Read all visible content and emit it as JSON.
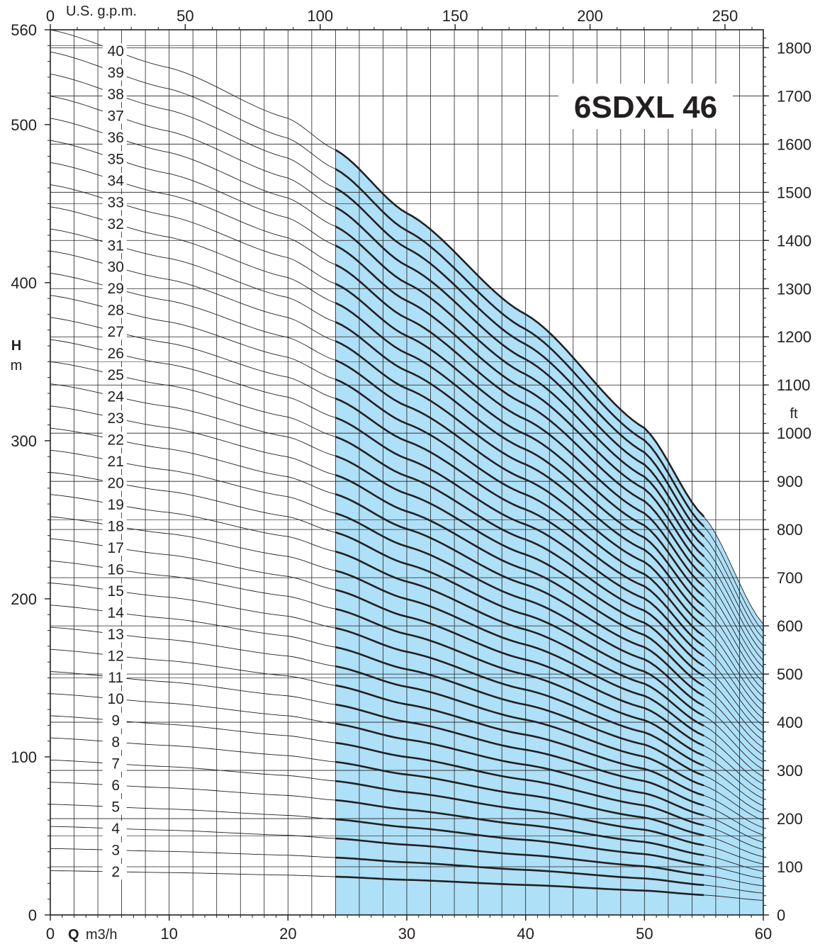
{
  "chart_data": {
    "type": "line",
    "title": "6SDXL 46",
    "x_axis": {
      "label_bold": "Q",
      "label_unit": "m3/h",
      "lim": [
        0,
        60
      ],
      "ticks": [
        0,
        10,
        20,
        30,
        40,
        50,
        60
      ]
    },
    "top_axis": {
      "label": "U.S. g.p.m.",
      "lim": [
        0,
        264.2
      ],
      "ticks": [
        0,
        50,
        100,
        150,
        200,
        250
      ]
    },
    "y_axis": {
      "label_bold": "H",
      "label_unit": "m",
      "lim": [
        0,
        560
      ],
      "ticks": [
        0,
        100,
        200,
        300,
        400,
        500,
        560
      ]
    },
    "right_axis": {
      "label": "ft",
      "lim": [
        0,
        1837.3
      ],
      "ticks": [
        0,
        100,
        200,
        300,
        400,
        500,
        600,
        700,
        800,
        900,
        1000,
        1100,
        1200,
        1300,
        1400,
        1500,
        1600,
        1700,
        1800
      ]
    },
    "grid": true,
    "operating_range_q": [
      24,
      55
    ],
    "operating_range_color": "#aee0f7",
    "line_color": "#231f20",
    "stages": [
      2,
      3,
      4,
      5,
      6,
      7,
      8,
      9,
      10,
      11,
      12,
      13,
      14,
      15,
      16,
      17,
      18,
      19,
      20,
      21,
      22,
      23,
      24,
      25,
      26,
      27,
      28,
      29,
      30,
      31,
      32,
      33,
      34,
      35,
      36,
      37,
      38,
      39,
      40
    ],
    "stage_curve_q": [
      0,
      10,
      20,
      24,
      30,
      40,
      50,
      55,
      60
    ],
    "stage_curve_head_per_stage_m": [
      14.0,
      13.4,
      12.6,
      12.1,
      11.1,
      9.5,
      7.7,
      6.3,
      4.6
    ]
  }
}
